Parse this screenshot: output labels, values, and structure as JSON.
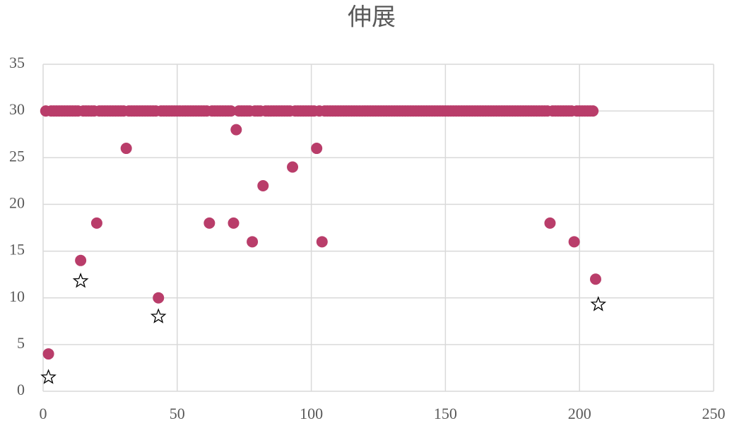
{
  "chart_data": {
    "type": "scatter",
    "title": "伸展",
    "xlim": [
      0,
      250
    ],
    "xticks": [
      0,
      50,
      100,
      150,
      200,
      250
    ],
    "ylim": [
      0,
      35
    ],
    "yticks": [
      0,
      5,
      10,
      15,
      20,
      25,
      30,
      35
    ],
    "grid": true,
    "series": [
      {
        "color": "#b93d6a",
        "marker": "circle",
        "x": [
          1,
          2,
          3,
          4,
          5,
          6,
          7,
          8,
          9,
          10,
          11,
          12,
          13,
          14,
          15,
          16,
          17,
          18,
          19,
          20,
          21,
          22,
          23,
          24,
          25,
          26,
          27,
          28,
          29,
          30,
          31,
          32,
          33,
          34,
          35,
          36,
          37,
          38,
          39,
          40,
          41,
          42,
          43,
          44,
          45,
          46,
          47,
          48,
          49,
          50,
          51,
          52,
          53,
          54,
          55,
          56,
          57,
          58,
          59,
          60,
          61,
          62,
          63,
          64,
          65,
          66,
          67,
          68,
          69,
          70,
          71,
          72,
          73,
          74,
          75,
          76,
          77,
          78,
          79,
          80,
          81,
          82,
          83,
          84,
          85,
          86,
          87,
          88,
          89,
          90,
          91,
          92,
          93,
          94,
          95,
          96,
          97,
          98,
          99,
          100,
          101,
          102,
          103,
          104,
          105,
          106,
          107,
          108,
          109,
          110,
          111,
          112,
          113,
          114,
          115,
          116,
          117,
          118,
          119,
          120,
          121,
          122,
          123,
          124,
          125,
          126,
          127,
          128,
          129,
          130,
          131,
          132,
          133,
          134,
          135,
          136,
          137,
          138,
          139,
          140,
          141,
          142,
          143,
          144,
          145,
          146,
          147,
          148,
          149,
          150,
          151,
          152,
          153,
          154,
          155,
          156,
          157,
          158,
          159,
          160,
          161,
          162,
          163,
          164,
          165,
          166,
          167,
          168,
          169,
          170,
          171,
          172,
          173,
          174,
          175,
          176,
          177,
          178,
          179,
          180,
          181,
          182,
          183,
          184,
          185,
          186,
          187,
          188,
          189,
          190,
          191,
          192,
          193,
          194,
          195,
          196,
          197,
          198,
          199,
          200,
          201,
          202,
          203,
          204,
          205,
          206
        ],
        "values": [
          30,
          4,
          30,
          30,
          30,
          30,
          30,
          30,
          30,
          30,
          30,
          30,
          30,
          14,
          30,
          30,
          30,
          30,
          30,
          18,
          30,
          30,
          30,
          30,
          30,
          30,
          30,
          30,
          30,
          30,
          26,
          30,
          30,
          30,
          30,
          30,
          30,
          30,
          30,
          30,
          30,
          30,
          10,
          30,
          30,
          30,
          30,
          30,
          30,
          30,
          30,
          30,
          30,
          30,
          30,
          30,
          30,
          30,
          30,
          30,
          30,
          18,
          30,
          30,
          30,
          30,
          30,
          30,
          30,
          30,
          18,
          28,
          30,
          30,
          30,
          30,
          30,
          16,
          30,
          30,
          30,
          22,
          30,
          30,
          30,
          30,
          30,
          30,
          30,
          30,
          30,
          30,
          24,
          30,
          30,
          30,
          30,
          30,
          30,
          30,
          30,
          26,
          30,
          16,
          30,
          30,
          30,
          30,
          30,
          30,
          30,
          30,
          30,
          30,
          30,
          30,
          30,
          30,
          30,
          30,
          30,
          30,
          30,
          30,
          30,
          30,
          30,
          30,
          30,
          30,
          30,
          30,
          30,
          30,
          30,
          30,
          30,
          30,
          30,
          30,
          30,
          30,
          30,
          30,
          30,
          30,
          30,
          30,
          30,
          30,
          30,
          30,
          30,
          30,
          30,
          30,
          30,
          30,
          30,
          30,
          30,
          30,
          30,
          30,
          30,
          30,
          30,
          30,
          30,
          30,
          30,
          30,
          30,
          30,
          30,
          30,
          30,
          30,
          30,
          30,
          30,
          30,
          30,
          30,
          30,
          30,
          30,
          30,
          18,
          30,
          30,
          30,
          30,
          30,
          30,
          30,
          30,
          16,
          30,
          30,
          30,
          30,
          30,
          30,
          30,
          12
        ]
      },
      {
        "color": "#000000",
        "marker": "star",
        "x": [
          2,
          14,
          43,
          207
        ],
        "values": [
          1.5,
          11.8,
          8,
          9.3
        ]
      }
    ]
  }
}
